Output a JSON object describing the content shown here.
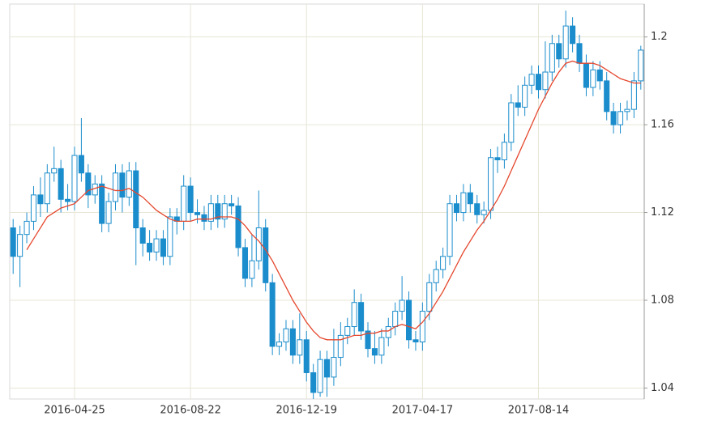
{
  "chart_data": {
    "type": "candlestick",
    "categories": [
      null,
      null,
      null,
      null,
      null,
      null,
      null,
      null,
      null,
      "2016-04-25",
      null,
      null,
      null,
      null,
      null,
      null,
      null,
      null,
      null,
      null,
      null,
      null,
      null,
      null,
      null,
      null,
      "2016-08-22",
      null,
      null,
      null,
      null,
      null,
      null,
      null,
      null,
      null,
      null,
      null,
      null,
      null,
      null,
      null,
      null,
      "2016-12-19",
      null,
      null,
      null,
      null,
      null,
      null,
      null,
      null,
      null,
      null,
      null,
      null,
      null,
      null,
      null,
      null,
      "2017-04-17",
      null,
      null,
      null,
      null,
      null,
      null,
      null,
      null,
      null,
      null,
      null,
      null,
      null,
      null,
      null,
      null,
      "2017-08-14",
      null,
      null,
      null,
      null,
      null,
      null,
      null,
      null,
      null,
      null,
      null,
      null,
      null,
      null,
      null
    ],
    "open": [
      1.113,
      1.1,
      1.11,
      1.116,
      1.128,
      1.124,
      1.138,
      1.14,
      1.126,
      1.125,
      1.146,
      1.138,
      1.128,
      1.133,
      1.115,
      1.125,
      1.138,
      1.127,
      1.139,
      1.113,
      1.106,
      1.102,
      1.108,
      1.1,
      1.118,
      1.116,
      1.132,
      1.12,
      1.119,
      1.116,
      1.124,
      1.117,
      1.124,
      1.123,
      1.104,
      1.09,
      1.098,
      1.113,
      1.088,
      1.059,
      1.061,
      1.067,
      1.055,
      1.062,
      1.047,
      1.038,
      1.053,
      1.045,
      1.054,
      1.064,
      1.068,
      1.079,
      1.066,
      1.058,
      1.055,
      1.063,
      1.068,
      1.075,
      1.08,
      1.062,
      1.061,
      1.075,
      1.088,
      1.094,
      1.1,
      1.124,
      1.12,
      1.129,
      1.124,
      1.119,
      1.121,
      1.145,
      1.144,
      1.152,
      1.17,
      1.168,
      1.178,
      1.183,
      1.176,
      1.184,
      1.197,
      1.19,
      1.205,
      1.197,
      1.188,
      1.177,
      1.185,
      1.18,
      1.166,
      1.16,
      1.166,
      1.167,
      1.18
    ],
    "high": [
      1.117,
      1.114,
      1.12,
      1.132,
      1.136,
      1.142,
      1.15,
      1.144,
      1.133,
      1.15,
      1.163,
      1.142,
      1.137,
      1.137,
      1.129,
      1.142,
      1.142,
      1.143,
      1.143,
      1.117,
      1.112,
      1.112,
      1.112,
      1.122,
      1.122,
      1.137,
      1.136,
      1.126,
      1.123,
      1.128,
      1.128,
      1.128,
      1.128,
      1.127,
      1.108,
      1.11,
      1.13,
      1.117,
      1.092,
      1.065,
      1.071,
      1.071,
      1.074,
      1.066,
      1.051,
      1.057,
      1.057,
      1.067,
      1.07,
      1.072,
      1.085,
      1.083,
      1.07,
      1.066,
      1.067,
      1.072,
      1.079,
      1.091,
      1.084,
      1.066,
      1.079,
      1.092,
      1.098,
      1.104,
      1.128,
      1.128,
      1.133,
      1.133,
      1.128,
      1.125,
      1.149,
      1.15,
      1.156,
      1.174,
      1.178,
      1.182,
      1.187,
      1.187,
      1.198,
      1.201,
      1.201,
      1.212,
      1.209,
      1.201,
      1.192,
      1.189,
      1.189,
      1.184,
      1.17,
      1.17,
      1.171,
      1.184,
      1.196
    ],
    "low": [
      1.092,
      1.086,
      1.106,
      1.112,
      1.118,
      1.12,
      1.134,
      1.12,
      1.121,
      1.121,
      1.134,
      1.122,
      1.124,
      1.111,
      1.111,
      1.121,
      1.12,
      1.123,
      1.096,
      1.1,
      1.098,
      1.098,
      1.096,
      1.096,
      1.11,
      1.112,
      1.116,
      1.115,
      1.112,
      1.112,
      1.113,
      1.113,
      1.119,
      1.1,
      1.086,
      1.086,
      1.094,
      1.084,
      1.055,
      1.055,
      1.057,
      1.051,
      1.051,
      1.043,
      1.035,
      1.036,
      1.036,
      1.041,
      1.05,
      1.06,
      1.064,
      1.062,
      1.054,
      1.051,
      1.051,
      1.059,
      1.064,
      1.071,
      1.058,
      1.057,
      1.057,
      1.071,
      1.084,
      1.09,
      1.096,
      1.116,
      1.116,
      1.12,
      1.115,
      1.115,
      1.117,
      1.138,
      1.14,
      1.148,
      1.164,
      1.164,
      1.174,
      1.172,
      1.172,
      1.18,
      1.186,
      1.186,
      1.193,
      1.184,
      1.173,
      1.173,
      1.176,
      1.162,
      1.156,
      1.156,
      1.162,
      1.163,
      1.176
    ],
    "close": [
      1.1,
      1.11,
      1.116,
      1.128,
      1.124,
      1.138,
      1.14,
      1.126,
      1.125,
      1.146,
      1.138,
      1.128,
      1.133,
      1.115,
      1.125,
      1.138,
      1.127,
      1.139,
      1.113,
      1.106,
      1.102,
      1.108,
      1.1,
      1.118,
      1.116,
      1.132,
      1.12,
      1.119,
      1.116,
      1.124,
      1.117,
      1.124,
      1.123,
      1.104,
      1.09,
      1.098,
      1.113,
      1.088,
      1.059,
      1.061,
      1.067,
      1.055,
      1.062,
      1.047,
      1.038,
      1.053,
      1.045,
      1.054,
      1.064,
      1.068,
      1.079,
      1.066,
      1.058,
      1.055,
      1.063,
      1.068,
      1.075,
      1.08,
      1.062,
      1.061,
      1.075,
      1.088,
      1.094,
      1.1,
      1.124,
      1.12,
      1.129,
      1.124,
      1.119,
      1.121,
      1.145,
      1.144,
      1.152,
      1.17,
      1.168,
      1.178,
      1.183,
      1.176,
      1.184,
      1.197,
      1.19,
      1.205,
      1.197,
      1.188,
      1.177,
      1.185,
      1.18,
      1.166,
      1.16,
      1.166,
      1.167,
      1.18,
      1.194
    ],
    "moving_average": {
      "color": "#e5472d",
      "values": [
        null,
        null,
        1.103,
        1.108,
        1.113,
        1.118,
        1.12,
        1.122,
        1.123,
        1.124,
        1.127,
        1.13,
        1.131,
        1.132,
        1.131,
        1.13,
        1.13,
        1.131,
        1.129,
        1.127,
        1.124,
        1.121,
        1.119,
        1.117,
        1.116,
        1.116,
        1.116,
        1.117,
        1.117,
        1.117,
        1.118,
        1.118,
        1.118,
        1.117,
        1.114,
        1.11,
        1.107,
        1.103,
        1.098,
        1.092,
        1.086,
        1.08,
        1.075,
        1.07,
        1.066,
        1.063,
        1.062,
        1.062,
        1.062,
        1.063,
        1.064,
        1.064,
        1.065,
        1.065,
        1.066,
        1.066,
        1.068,
        1.069,
        1.068,
        1.067,
        1.07,
        1.074,
        1.079,
        1.084,
        1.09,
        1.096,
        1.102,
        1.107,
        1.112,
        1.116,
        1.121,
        1.126,
        1.132,
        1.139,
        1.146,
        1.153,
        1.16,
        1.167,
        1.173,
        1.179,
        1.184,
        1.188,
        1.189,
        1.188,
        1.188,
        1.188,
        1.187,
        1.185,
        1.183,
        1.181,
        1.18,
        1.179,
        1.179
      ]
    },
    "color": "#1b8dcc",
    "ylim": [
      1.035,
      1.215
    ],
    "yticks": [
      1.04,
      1.08,
      1.12,
      1.16,
      {
        "value": 1.2,
        "label": "1.2"
      }
    ],
    "grid": true
  }
}
